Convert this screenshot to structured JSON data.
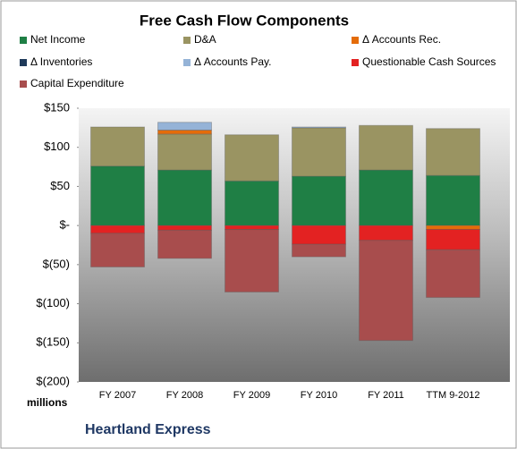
{
  "chart_data": {
    "type": "stacked-bar",
    "title": "Free Cash Flow Components",
    "y_unit_label": "millions",
    "footer": "Heartland Express",
    "categories": [
      "FY 2007",
      "FY 2008",
      "FY 2009",
      "FY 2010",
      "FY 2011",
      "TTM 9-2012"
    ],
    "series": [
      {
        "name": "Net Income",
        "color": "#1f7f45",
        "values": [
          76,
          71,
          57,
          63,
          71,
          64
        ]
      },
      {
        "name": "D&A",
        "color": "#9a9462",
        "values": [
          50,
          46,
          59,
          62,
          57,
          60
        ]
      },
      {
        "name": "Δ Accounts Rec.",
        "color": "#e46c0a",
        "values": [
          0,
          5,
          0,
          0,
          0,
          -5
        ]
      },
      {
        "name": "Δ Inventories",
        "color": "#1f3a5a",
        "values": [
          0,
          0,
          0,
          0,
          0,
          0
        ]
      },
      {
        "name": "Δ Accounts Pay.",
        "color": "#95b3d7",
        "values": [
          0,
          10,
          0,
          1,
          0,
          0
        ]
      },
      {
        "name": "Questionable Cash Sources",
        "color": "#e32222",
        "values": [
          -10,
          -6,
          -5,
          -24,
          -19,
          -26
        ]
      },
      {
        "name": "Capital Expenditure",
        "color": "#a84d4d",
        "values": [
          -43,
          -36,
          -80,
          -16,
          -128,
          -61
        ]
      }
    ],
    "ylim": [
      -200,
      150
    ],
    "yticks": [
      {
        "value": 150,
        "label": "$150"
      },
      {
        "value": 100,
        "label": "$100"
      },
      {
        "value": 50,
        "label": "$50"
      },
      {
        "value": 0,
        "label": "$-"
      },
      {
        "value": -50,
        "label": "$(50)"
      },
      {
        "value": -100,
        "label": "$(100)"
      },
      {
        "value": -150,
        "label": "$(150)"
      },
      {
        "value": -200,
        "label": "$(200)"
      }
    ],
    "grid": false
  }
}
